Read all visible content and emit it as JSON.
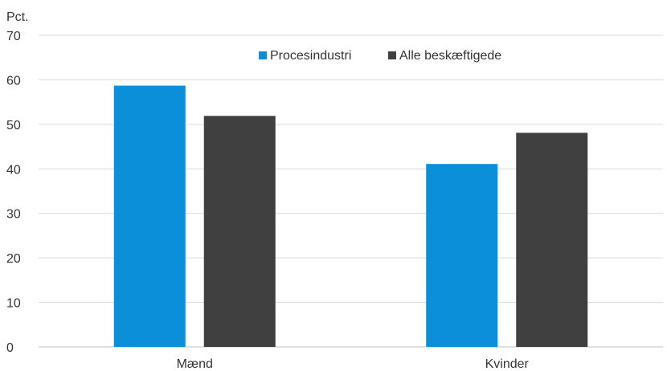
{
  "chart_data": {
    "type": "bar",
    "ylabel": "Pct.",
    "categories": [
      "Mænd",
      "Kvinder"
    ],
    "series": [
      {
        "name": "Procesindustri",
        "values": [
          58.7,
          41.1
        ],
        "color": "#0a8fd8"
      },
      {
        "name": "Alle beskæftigede",
        "values": [
          51.9,
          48.1
        ],
        "color": "#404040"
      }
    ],
    "ylim": [
      0,
      70
    ],
    "yticks": [
      "0",
      "10",
      "20",
      "30",
      "40",
      "50",
      "60",
      "70"
    ],
    "grid": true,
    "legend_position": "top-right"
  }
}
